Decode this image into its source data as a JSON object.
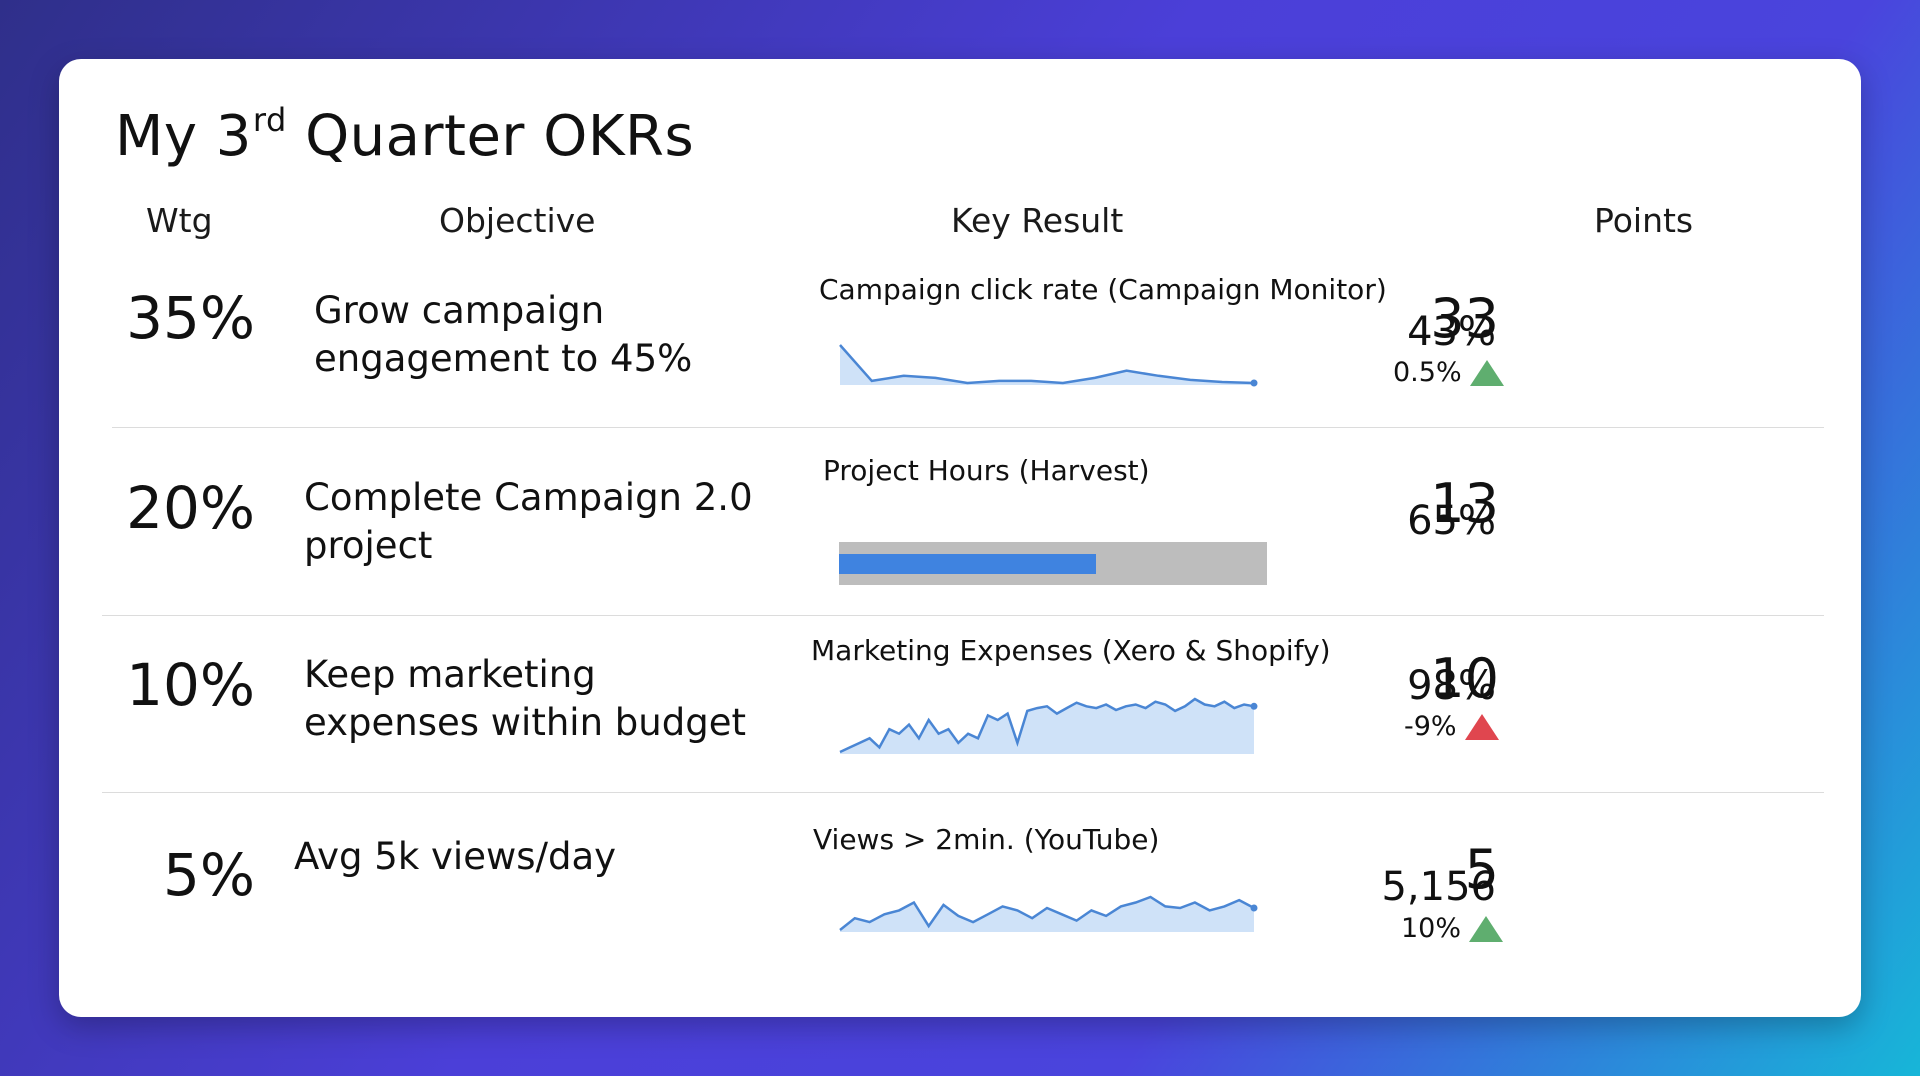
{
  "title": {
    "prefix": "My 3",
    "sup": "rd",
    "suffix": " Quarter OKRs"
  },
  "headers": {
    "wtg": "Wtg",
    "objective": "Objective",
    "key_result": "Key Result",
    "points": "Points"
  },
  "rows": [
    {
      "weight": "35%",
      "objective_line1": "Grow campaign",
      "objective_line2": "engagement to 45%",
      "kr_label": "Campaign click rate (Campaign Monitor)",
      "value": "43%",
      "delta": "0.5%",
      "delta_direction": "up",
      "delta_color": "#5fae6f",
      "points": "33",
      "spark_values": [
        70,
        35,
        40,
        38,
        33,
        35,
        35,
        33,
        38,
        45,
        40,
        36,
        34,
        33
      ]
    },
    {
      "weight": "20%",
      "objective_line1": "Complete Campaign 2.0",
      "objective_line2": "project",
      "kr_label": "Project Hours (Harvest)",
      "value": "65%",
      "points": "13",
      "progress": 0.6
    },
    {
      "weight": "10%",
      "objective_line1": "Keep marketing",
      "objective_line2": "expenses within budget",
      "kr_label": "Marketing Expenses (Xero & Shopify)",
      "value": "98%",
      "delta": "-9%",
      "delta_direction": "up",
      "delta_color": "#e0464f",
      "points": "10",
      "spark_values": [
        20,
        25,
        30,
        35,
        25,
        45,
        40,
        50,
        35,
        55,
        40,
        45,
        30,
        40,
        35,
        60,
        55,
        62,
        30,
        65,
        68,
        70,
        62,
        68,
        74,
        70,
        68,
        72,
        66,
        70,
        72,
        68,
        75,
        72,
        65,
        70,
        78,
        72,
        70,
        75,
        68,
        72,
        70
      ]
    },
    {
      "weight": "5%",
      "objective_line1": "Avg 5k views/day",
      "objective_line2": "",
      "kr_label": "Views > 2min. (YouTube)",
      "value": "5,156",
      "delta": "10%",
      "delta_direction": "up",
      "delta_color": "#5fae6f",
      "points": "5",
      "spark_values": [
        30,
        45,
        40,
        50,
        55,
        65,
        35,
        62,
        48,
        40,
        50,
        60,
        55,
        45,
        58,
        50,
        42,
        55,
        48,
        60,
        65,
        72,
        60,
        58,
        65,
        55,
        60,
        68,
        58
      ]
    }
  ],
  "colors": {
    "spark_line": "#4a86d4",
    "spark_fill": "#cfe2f8",
    "bar_bg": "#bdbdbd",
    "bar_fill": "#3f83e0"
  }
}
